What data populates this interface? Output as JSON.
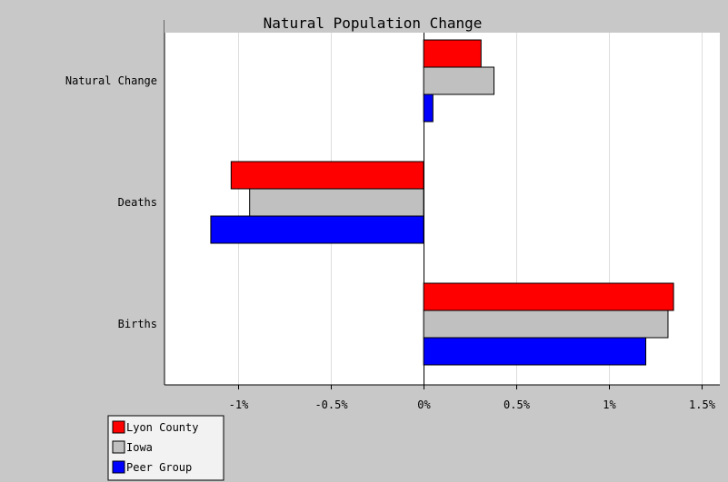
{
  "chart_data": {
    "type": "bar",
    "orientation": "horizontal",
    "title": "Natural Population Change",
    "categories": [
      "Natural Change",
      "Deaths",
      "Births"
    ],
    "series": [
      {
        "name": "Lyon County",
        "color": "#ff0000",
        "values": [
          0.31,
          -1.04,
          1.35
        ]
      },
      {
        "name": "Iowa",
        "color": "#c0c0c0",
        "values": [
          0.38,
          -0.94,
          1.32
        ]
      },
      {
        "name": "Peer Group",
        "color": "#0000ff",
        "values": [
          0.05,
          -1.15,
          1.2
        ]
      }
    ],
    "xlim": [
      -1.4,
      1.6
    ],
    "x_ticks": [
      -1,
      -0.5,
      0,
      0.5,
      1,
      1.5
    ],
    "x_tick_labels": [
      "-1%",
      "-0.5%",
      "0%",
      "0.5%",
      "1%",
      "1.5%"
    ],
    "grid": "vertical",
    "legend_position": "bottom-left"
  }
}
